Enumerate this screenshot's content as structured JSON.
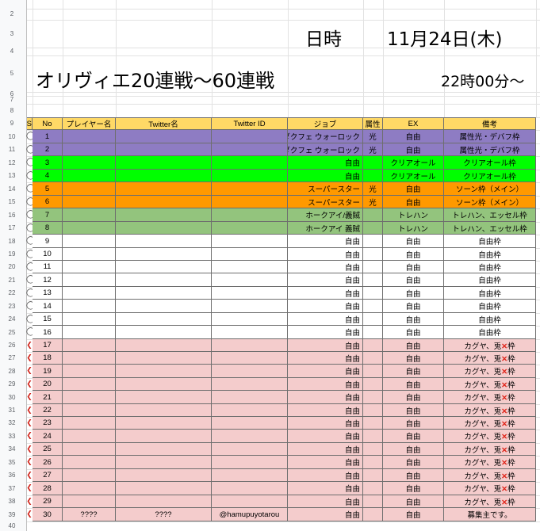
{
  "title_area": {
    "date_label": "日時",
    "date_value": "11月24日(木)",
    "event_title": "オリヴィエ20連戦〜60連戦",
    "start_time": "22時00分〜"
  },
  "row_header_numbers": [
    "2",
    "3",
    "4",
    "5",
    "6",
    "7",
    "8",
    "9",
    "10",
    "11",
    "12",
    "13",
    "14",
    "15",
    "16",
    "17",
    "18",
    "19",
    "20",
    "21",
    "22",
    "23",
    "24",
    "25",
    "26",
    "27",
    "28",
    "29",
    "30",
    "31",
    "32",
    "33",
    "34",
    "35",
    "36",
    "37",
    "38",
    "39",
    "40"
  ],
  "table": {
    "columns": [
      "No",
      "プレイヤー名",
      "Twitter名",
      "Twitter ID",
      "ジョブ",
      "属性",
      "EX",
      "備考"
    ],
    "cut_column_header": "S",
    "rows": [
      {
        "no": "1",
        "player": "",
        "twitter_name": "",
        "twitter_id": "",
        "job": "ダクフェ ウォーロック",
        "attr": "光",
        "ex": "自由",
        "note": "属性光・デバフ枠",
        "color": "#8e7cc3",
        "frag": "◯"
      },
      {
        "no": "2",
        "player": "",
        "twitter_name": "",
        "twitter_id": "",
        "job": "ダクフェ ウォーロック",
        "attr": "光",
        "ex": "自由",
        "note": "属性光・デバフ枠",
        "color": "#8e7cc3",
        "frag": "◯"
      },
      {
        "no": "3",
        "player": "",
        "twitter_name": "",
        "twitter_id": "",
        "job": "自由",
        "attr": "",
        "ex": "クリアオール",
        "note": "クリアオール枠",
        "color": "#00ff00",
        "frag": "◯"
      },
      {
        "no": "4",
        "player": "",
        "twitter_name": "",
        "twitter_id": "",
        "job": "自由",
        "attr": "",
        "ex": "クリアオール",
        "note": "クリアオール枠",
        "color": "#00ff00",
        "frag": "◯"
      },
      {
        "no": "5",
        "player": "",
        "twitter_name": "",
        "twitter_id": "",
        "job": "スーパースター",
        "attr": "光",
        "ex": "自由",
        "note": "ソーン枠（メイン）",
        "color": "#ff9900",
        "frag": "◯"
      },
      {
        "no": "6",
        "player": "",
        "twitter_name": "",
        "twitter_id": "",
        "job": "スーパースター",
        "attr": "光",
        "ex": "自由",
        "note": "ソーン枠（メイン）",
        "color": "#ff9900",
        "frag": "◯"
      },
      {
        "no": "7",
        "player": "",
        "twitter_name": "",
        "twitter_id": "",
        "job": "ホークアイ/義賊",
        "attr": "",
        "ex": "トレハン",
        "note": "トレハン、エッセル枠",
        "color": "#93c47d",
        "frag": "◯"
      },
      {
        "no": "8",
        "player": "",
        "twitter_name": "",
        "twitter_id": "",
        "job": "ホークアイ 義賊",
        "attr": "",
        "ex": "トレハン",
        "note": "トレハン、エッセル枠",
        "color": "#93c47d",
        "frag": "◯"
      },
      {
        "no": "9",
        "player": "",
        "twitter_name": "",
        "twitter_id": "",
        "job": "自由",
        "attr": "",
        "ex": "自由",
        "note": "自由枠",
        "color": "#ffffff",
        "frag": "◯"
      },
      {
        "no": "10",
        "player": "",
        "twitter_name": "",
        "twitter_id": "",
        "job": "自由",
        "attr": "",
        "ex": "自由",
        "note": "自由枠",
        "color": "#ffffff",
        "frag": "◯"
      },
      {
        "no": "11",
        "player": "",
        "twitter_name": "",
        "twitter_id": "",
        "job": "自由",
        "attr": "",
        "ex": "自由",
        "note": "自由枠",
        "color": "#ffffff",
        "frag": "◯"
      },
      {
        "no": "12",
        "player": "",
        "twitter_name": "",
        "twitter_id": "",
        "job": "自由",
        "attr": "",
        "ex": "自由",
        "note": "自由枠",
        "color": "#ffffff",
        "frag": "◯"
      },
      {
        "no": "13",
        "player": "",
        "twitter_name": "",
        "twitter_id": "",
        "job": "自由",
        "attr": "",
        "ex": "自由",
        "note": "自由枠",
        "color": "#ffffff",
        "frag": "◯"
      },
      {
        "no": "14",
        "player": "",
        "twitter_name": "",
        "twitter_id": "",
        "job": "自由",
        "attr": "",
        "ex": "自由",
        "note": "自由枠",
        "color": "#ffffff",
        "frag": "◯"
      },
      {
        "no": "15",
        "player": "",
        "twitter_name": "",
        "twitter_id": "",
        "job": "自由",
        "attr": "",
        "ex": "自由",
        "note": "自由枠",
        "color": "#ffffff",
        "frag": "◯"
      },
      {
        "no": "16",
        "player": "",
        "twitter_name": "",
        "twitter_id": "",
        "job": "自由",
        "attr": "",
        "ex": "自由",
        "note": "自由枠",
        "color": "#ffffff",
        "frag": "◯"
      },
      {
        "no": "17",
        "player": "",
        "twitter_name": "",
        "twitter_id": "",
        "job": "自由",
        "attr": "",
        "ex": "自由",
        "note": "カグヤ、兎✕枠",
        "color": "#f4cccc",
        "frag": "❮"
      },
      {
        "no": "18",
        "player": "",
        "twitter_name": "",
        "twitter_id": "",
        "job": "自由",
        "attr": "",
        "ex": "自由",
        "note": "カグヤ、兎✕枠",
        "color": "#f4cccc",
        "frag": "❮"
      },
      {
        "no": "19",
        "player": "",
        "twitter_name": "",
        "twitter_id": "",
        "job": "自由",
        "attr": "",
        "ex": "自由",
        "note": "カグヤ、兎✕枠",
        "color": "#f4cccc",
        "frag": "❮"
      },
      {
        "no": "20",
        "player": "",
        "twitter_name": "",
        "twitter_id": "",
        "job": "自由",
        "attr": "",
        "ex": "自由",
        "note": "カグヤ、兎✕枠",
        "color": "#f4cccc",
        "frag": "❮"
      },
      {
        "no": "21",
        "player": "",
        "twitter_name": "",
        "twitter_id": "",
        "job": "自由",
        "attr": "",
        "ex": "自由",
        "note": "カグヤ、兎✕枠",
        "color": "#f4cccc",
        "frag": "❮"
      },
      {
        "no": "22",
        "player": "",
        "twitter_name": "",
        "twitter_id": "",
        "job": "自由",
        "attr": "",
        "ex": "自由",
        "note": "カグヤ、兎✕枠",
        "color": "#f4cccc",
        "frag": "❮"
      },
      {
        "no": "23",
        "player": "",
        "twitter_name": "",
        "twitter_id": "",
        "job": "自由",
        "attr": "",
        "ex": "自由",
        "note": "カグヤ、兎✕枠",
        "color": "#f4cccc",
        "frag": "❮"
      },
      {
        "no": "24",
        "player": "",
        "twitter_name": "",
        "twitter_id": "",
        "job": "自由",
        "attr": "",
        "ex": "自由",
        "note": "カグヤ、兎✕枠",
        "color": "#f4cccc",
        "frag": "❮"
      },
      {
        "no": "25",
        "player": "",
        "twitter_name": "",
        "twitter_id": "",
        "job": "自由",
        "attr": "",
        "ex": "自由",
        "note": "カグヤ、兎✕枠",
        "color": "#f4cccc",
        "frag": "❮"
      },
      {
        "no": "26",
        "player": "",
        "twitter_name": "",
        "twitter_id": "",
        "job": "自由",
        "attr": "",
        "ex": "自由",
        "note": "カグヤ、兎✕枠",
        "color": "#f4cccc",
        "frag": "❮"
      },
      {
        "no": "27",
        "player": "",
        "twitter_name": "",
        "twitter_id": "",
        "job": "自由",
        "attr": "",
        "ex": "自由",
        "note": "カグヤ、兎✕枠",
        "color": "#f4cccc",
        "frag": "❮"
      },
      {
        "no": "28",
        "player": "",
        "twitter_name": "",
        "twitter_id": "",
        "job": "自由",
        "attr": "",
        "ex": "自由",
        "note": "カグヤ、兎✕枠",
        "color": "#f4cccc",
        "frag": "❮"
      },
      {
        "no": "29",
        "player": "",
        "twitter_name": "",
        "twitter_id": "",
        "job": "自由",
        "attr": "",
        "ex": "自由",
        "note": "カグヤ、兎✕枠",
        "color": "#f4cccc",
        "frag": "❮"
      },
      {
        "no": "30",
        "player": "????",
        "twitter_name": "????",
        "twitter_id": "@hamupuyotarou",
        "job": "自由",
        "attr": "",
        "ex": "自由",
        "note": "募集主です。",
        "color": "#f4cccc",
        "frag": "❮"
      }
    ]
  },
  "colors": {
    "header_fill": "#ffd966",
    "purple": "#8e7cc3",
    "green": "#00ff00",
    "orange": "#ff9900",
    "sage": "#93c47d",
    "pink": "#f4cccc",
    "x_mark": "#e0261b"
  }
}
